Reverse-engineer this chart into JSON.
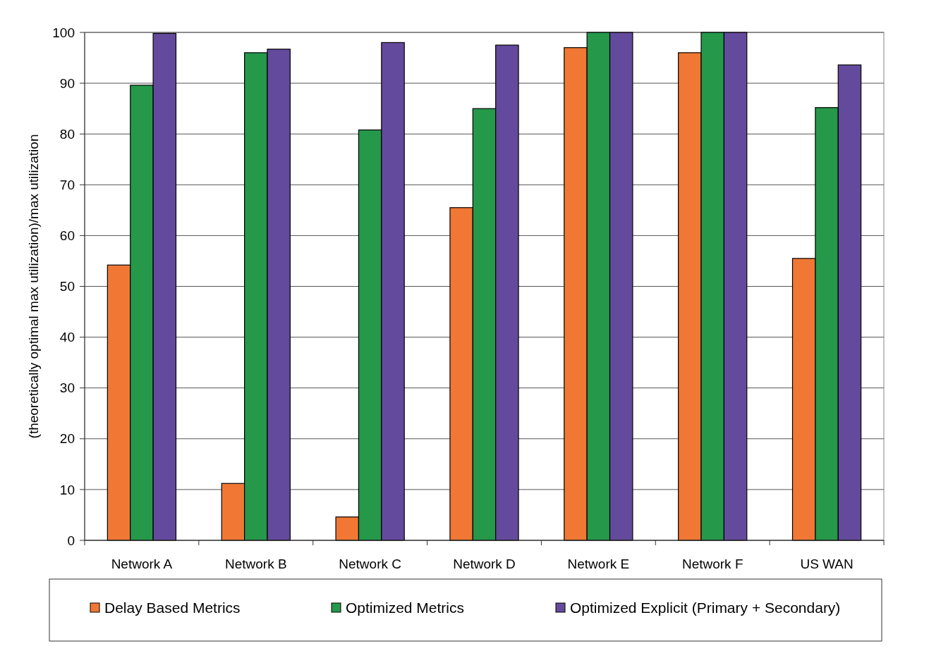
{
  "chart_data": {
    "type": "bar",
    "ylabel": "(theoretically optimal max utilization)/max utilization",
    "categories": [
      "Network A",
      "Network B",
      "Network C",
      "Network D",
      "Network E",
      "Network F",
      "US WAN"
    ],
    "series": [
      {
        "name": "Delay Based Metrics",
        "color": "#f07834",
        "values": [
          54.2,
          11.2,
          4.6,
          65.5,
          97.0,
          96.0,
          55.5
        ]
      },
      {
        "name": "Optimized Metrics",
        "color": "#25984a",
        "values": [
          89.6,
          96.0,
          80.8,
          85.0,
          100,
          100,
          85.2
        ]
      },
      {
        "name": "Optimized Explicit (Primary + Secondary)",
        "color": "#644a9c",
        "values": [
          99.8,
          96.7,
          98.0,
          97.5,
          100,
          100,
          93.6
        ]
      }
    ],
    "ylim": [
      0,
      100
    ],
    "yticks": [
      0,
      10,
      20,
      30,
      40,
      50,
      60,
      70,
      80,
      90,
      100
    ],
    "grid": "y",
    "legend": "bottom"
  }
}
